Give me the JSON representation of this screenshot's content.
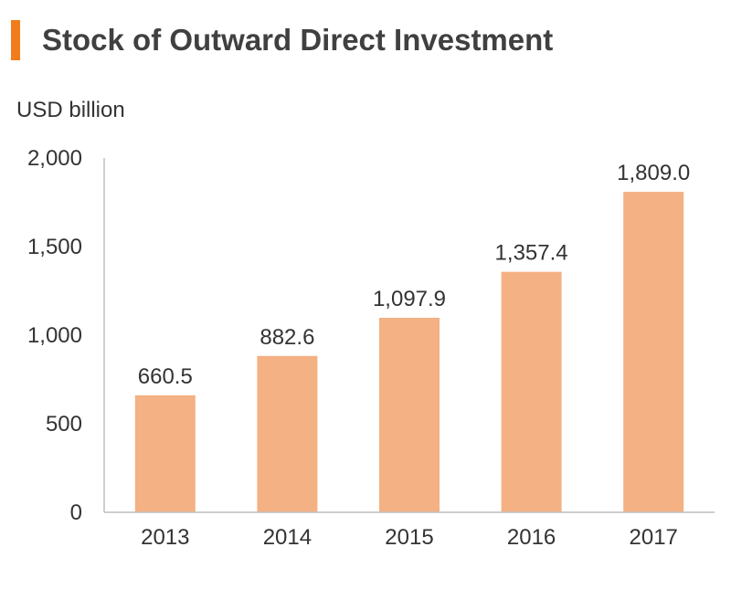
{
  "title": "Stock of Outward Direct Investment",
  "colors": {
    "accent": "#f07c1b",
    "bar": "#f4b183",
    "axis": "#bfbfbf"
  },
  "chart_data": {
    "type": "bar",
    "title": "Stock of Outward Direct Investment",
    "ylabel": "USD billion",
    "xlabel": "",
    "categories": [
      "2013",
      "2014",
      "2015",
      "2016",
      "2017"
    ],
    "values": [
      660.5,
      882.6,
      1097.9,
      1357.4,
      1809.0
    ],
    "data_labels": [
      "660.5",
      "882.6",
      "1,097.9",
      "1,357.4",
      "1,809.0"
    ],
    "ylim": [
      0,
      2000
    ],
    "yticks": [
      0,
      500,
      1000,
      1500,
      2000
    ],
    "ytick_labels": [
      "0",
      "500",
      "1,000",
      "1,500",
      "2,000"
    ],
    "grid": false,
    "legend": "none"
  }
}
